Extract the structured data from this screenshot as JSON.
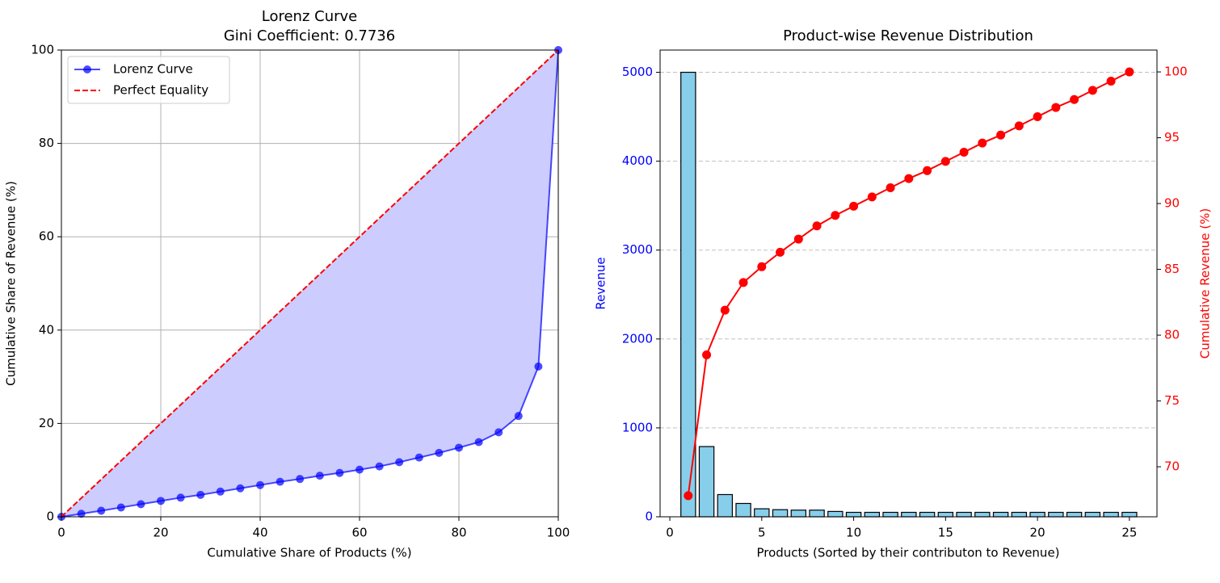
{
  "chart_data": [
    {
      "type": "line",
      "title": "Lorenz Curve",
      "subtitle": "Gini Coefficient: 0.7736",
      "x_label": "Cumulative Share of Products (%)",
      "y_label": "Cumulative Share of Revenue (%)",
      "xlim": [
        0,
        100
      ],
      "ylim": [
        0,
        100
      ],
      "xticks": [
        0,
        20,
        40,
        60,
        80,
        100
      ],
      "yticks": [
        0,
        20,
        40,
        60,
        80,
        100
      ],
      "grid": true,
      "legend": "upper left",
      "fill_color": "#ccccff",
      "series": [
        {
          "name": "Lorenz Curve",
          "color": "#0000ff",
          "marker": true,
          "dashed": false,
          "x": [
            0,
            4,
            8,
            12,
            16,
            20,
            24,
            28,
            32,
            36,
            40,
            44,
            48,
            52,
            56,
            60,
            64,
            68,
            72,
            76,
            80,
            84,
            88,
            92,
            96,
            100
          ],
          "values": [
            0,
            0.65,
            1.3,
            2.0,
            2.7,
            3.4,
            4.1,
            4.7,
            5.4,
            6.1,
            6.8,
            7.5,
            8.1,
            8.8,
            9.4,
            10.1,
            10.8,
            11.7,
            12.7,
            13.7,
            14.8,
            16.0,
            18.1,
            21.6,
            32.2,
            100
          ]
        },
        {
          "name": "Perfect Equality",
          "color": "#ff0000",
          "marker": false,
          "dashed": true,
          "x": [
            0,
            100
          ],
          "values": [
            0,
            100
          ]
        }
      ]
    },
    {
      "type": "bar_line",
      "title": "Product-wise Revenue Distribution",
      "x_label": "Products (Sorted by their contributon to Revenue)",
      "y_label": "Revenue",
      "y2_label": "Cumulative Revenue (%)",
      "xlim": [
        -0.53,
        26.5
      ],
      "ylim": [
        0,
        5250
      ],
      "y2lim": [
        66.2,
        101.66
      ],
      "xticks": [
        0,
        5,
        10,
        15,
        20,
        25
      ],
      "yticks": [
        0,
        1000,
        2000,
        3000,
        4000,
        5000
      ],
      "y2ticks": [
        70,
        75,
        80,
        85,
        90,
        95,
        100
      ],
      "grid": "y-dashed",
      "x": [
        1,
        2,
        3,
        4,
        5,
        6,
        7,
        8,
        9,
        10,
        11,
        12,
        13,
        14,
        15,
        16,
        17,
        18,
        19,
        20,
        21,
        22,
        23,
        24,
        25
      ],
      "series": [
        {
          "color": "#87ceeb",
          "axis": "y",
          "values": [
            5000,
            790,
            250,
            150,
            90,
            80,
            75,
            75,
            60,
            50,
            50,
            50,
            50,
            50,
            50,
            50,
            50,
            50,
            50,
            50,
            50,
            50,
            50,
            50,
            50
          ]
        },
        {
          "color": "#ff0000",
          "axis": "y2",
          "values": [
            67.8,
            78.5,
            81.9,
            84.0,
            85.2,
            86.3,
            87.3,
            88.3,
            89.1,
            89.8,
            90.5,
            91.2,
            91.9,
            92.5,
            93.2,
            93.9,
            94.6,
            95.2,
            95.9,
            96.6,
            97.3,
            97.9,
            98.6,
            99.3,
            100
          ]
        }
      ]
    }
  ]
}
